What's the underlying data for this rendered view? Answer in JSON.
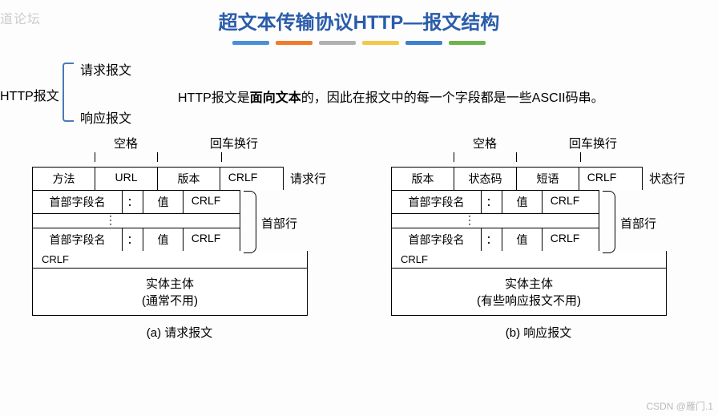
{
  "watermark_tl": "道论坛",
  "watermark_br": "CSDN @雁门.1",
  "title": {
    "text": "超文本传输协议HTTP—报文结构",
    "color": "#2a5caa"
  },
  "divider_colors": [
    "#4a90d9",
    "#f07b2b",
    "#b0b0b0",
    "#f2c94c",
    "#3f7fd1",
    "#6fb34f"
  ],
  "top": {
    "label": "HTTP报文",
    "item1": "请求报文",
    "item2": "响应报文",
    "desc_pre": "HTTP报文是",
    "desc_bold": "面向文本",
    "desc_post": "的，因此在报文中的每一个字段都是一些ASCII码串。"
  },
  "labels": {
    "space": "空格",
    "crlf_label": "回车换行",
    "request_line": "请求行",
    "status_line": "状态行",
    "header_lines": "首部行"
  },
  "request": {
    "start": [
      "方法",
      "URL",
      "版本",
      "CRLF"
    ],
    "hdr": [
      "首部字段名",
      "：",
      "值",
      "CRLF"
    ],
    "crlf": "CRLF",
    "body1": "实体主体",
    "body2": "(通常不用)",
    "caption": "(a) 请求报文"
  },
  "response": {
    "start": [
      "版本",
      "状态码",
      "短语",
      "CRLF"
    ],
    "hdr": [
      "首部字段名",
      "：",
      "值",
      "CRLF"
    ],
    "crlf": "CRLF",
    "body1": "实体主体",
    "body2": "(有些响应报文不用)",
    "caption": "(b) 响应报文"
  },
  "style": {
    "cell_widths_req": [
      78,
      78,
      78,
      56
    ],
    "cell_widths_resp": [
      78,
      78,
      78,
      56
    ],
    "hdr_widths": [
      112,
      26,
      50,
      56
    ],
    "hdr_block_width": 260
  }
}
